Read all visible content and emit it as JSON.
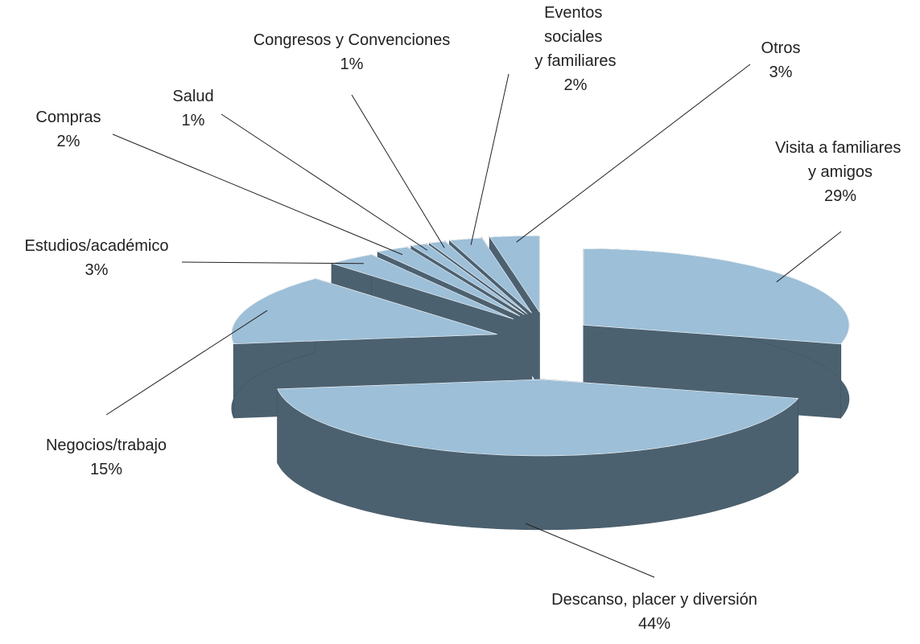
{
  "chart_data": {
    "type": "pie3d",
    "categories": [
      "Visita a familiares y amigos",
      "Descanso, placer y diversión",
      "Negocios/trabajo",
      "Estudios/académico",
      "Compras",
      "Salud",
      "Congresos y Convenciones",
      "Eventos sociales y familiares",
      "Otros"
    ],
    "values": [
      29,
      44,
      15,
      3,
      2,
      1,
      1,
      2,
      3
    ],
    "value_labels": [
      "29%",
      "44%",
      "15%",
      "3%",
      "2%",
      "1%",
      "1%",
      "2%",
      "3%"
    ],
    "color": "#9dbfd8",
    "side_color": "#4c6170"
  }
}
